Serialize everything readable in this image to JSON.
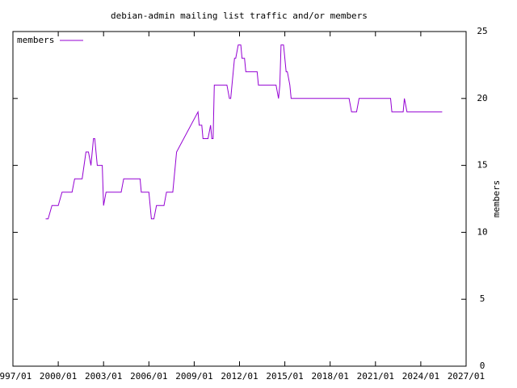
{
  "chart_data": {
    "type": "line",
    "title": "debian-admin mailing list traffic and/or members",
    "y_label": "members",
    "x": [
      "1999/03",
      "1999/05",
      "1999/08",
      "2000/01",
      "2000/04",
      "2000/12",
      "2001/02",
      "2001/08",
      "2001/11",
      "2002/01",
      "2002/03",
      "2002/05",
      "2002/06",
      "2002/08",
      "2002/12",
      "2003/01",
      "2003/03",
      "2004/03",
      "2004/05",
      "2005/06",
      "2005/07",
      "2006/01",
      "2006/03",
      "2006/05",
      "2006/07",
      "2007/01",
      "2007/03",
      "2007/08",
      "2007/11",
      "2009/04",
      "2009/05",
      "2009/07",
      "2009/08",
      "2009/12",
      "2010/02",
      "2010/03",
      "2010/04",
      "2010/05",
      "2011/03",
      "2011/05",
      "2011/06",
      "2011/09",
      "2011/10",
      "2011/12",
      "2012/02",
      "2012/03",
      "2012/05",
      "2012/06",
      "2013/03",
      "2013/04",
      "2014/06",
      "2014/08",
      "2014/09",
      "2014/10",
      "2014/12",
      "2015/02",
      "2015/03",
      "2015/05",
      "2015/06",
      "2019/04",
      "2019/06",
      "2019/10",
      "2019/12",
      "2022/01",
      "2022/02",
      "2022/11",
      "2022/12",
      "2023/02",
      "2025/06"
    ],
    "series": [
      {
        "name": "members",
        "color": "#9400d3",
        "values": [
          11,
          11,
          12,
          12,
          13,
          13,
          14,
          14,
          16,
          16,
          15,
          17,
          17,
          15,
          15,
          12,
          13,
          13,
          14,
          14,
          13,
          13,
          11,
          11,
          12,
          12,
          13,
          13,
          16,
          19,
          18,
          18,
          17,
          17,
          18,
          17,
          17,
          21,
          21,
          20,
          20,
          23,
          23,
          24,
          24,
          23,
          23,
          22,
          22,
          21,
          21,
          20,
          21,
          24,
          24,
          22,
          22,
          21,
          20,
          20,
          19,
          19,
          20,
          20,
          19,
          19,
          20,
          19,
          19
        ]
      }
    ],
    "xlim": [
      "1997/01",
      "2027/01"
    ],
    "xticks": [
      "1997/01",
      "2000/01",
      "2003/01",
      "2006/01",
      "2009/01",
      "2012/01",
      "2015/01",
      "2018/01",
      "2021/01",
      "2024/01",
      "2027/01"
    ],
    "ylim": [
      0,
      25
    ],
    "yticks": [
      0,
      5,
      10,
      15,
      20,
      25
    ],
    "legend": "top-left"
  }
}
